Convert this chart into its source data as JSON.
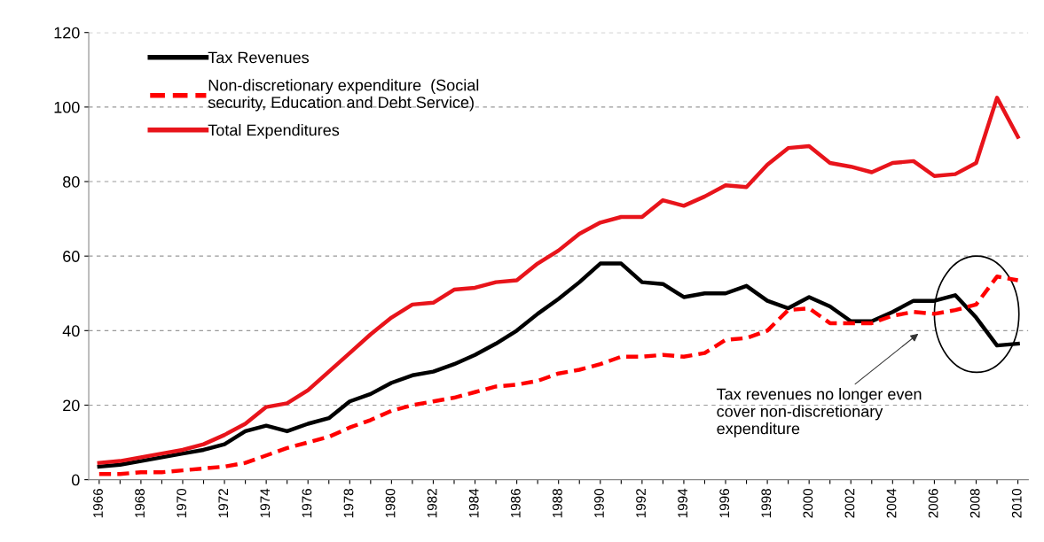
{
  "chart_data": {
    "type": "line",
    "categories": [
      "1966",
      null,
      "1968",
      null,
      "1970",
      null,
      "1972",
      null,
      "1974",
      null,
      "1976",
      null,
      "1978",
      null,
      "1980",
      null,
      "1982",
      null,
      "1984",
      null,
      "1986",
      null,
      "1988",
      null,
      "1990",
      null,
      "1992",
      null,
      "1994",
      null,
      "1996",
      null,
      "1998",
      null,
      "2000",
      null,
      "2002",
      null,
      "2004",
      null,
      "2006",
      null,
      "2008",
      null,
      "2010"
    ],
    "series": [
      {
        "name": "Tax Revenues",
        "color": "#000000",
        "line_style": "solid",
        "values": [
          3.5,
          4,
          5,
          6,
          7,
          8,
          9.5,
          13,
          14.5,
          13,
          15,
          16.5,
          21,
          23,
          26,
          28,
          29,
          31,
          33.5,
          36.5,
          40,
          44.5,
          48.5,
          53,
          58,
          58,
          53,
          52.5,
          49,
          50,
          50,
          52,
          48,
          46,
          49,
          46.5,
          42.5,
          42.5,
          45,
          48,
          48,
          49.5,
          43.5,
          36,
          36.5
        ]
      },
      {
        "name": "Non-discretionary expenditure  (Social\nsecurity, Education and Debt Service)",
        "color": "#ff0000",
        "line_style": "dashed",
        "values": [
          1.5,
          1.5,
          2,
          2,
          2.5,
          3,
          3.5,
          4.5,
          6.5,
          8.5,
          10,
          11.5,
          14,
          16,
          18.5,
          20,
          21,
          22,
          23.5,
          25,
          25.5,
          26.5,
          28.5,
          29.5,
          31,
          33,
          33,
          33.5,
          33,
          34,
          37.5,
          38,
          40,
          45.5,
          46,
          42,
          42,
          42,
          44,
          45,
          44.5,
          45.5,
          47,
          54.5,
          53.5
        ]
      },
      {
        "name": "Total Expenditures",
        "color": "#e8141b",
        "line_style": "solid",
        "values": [
          4.5,
          5,
          6,
          7,
          8,
          9.5,
          12,
          15,
          19.5,
          20.5,
          24,
          29,
          34,
          39,
          43.5,
          47,
          47.5,
          51,
          51.5,
          53,
          53.5,
          58,
          61.5,
          66,
          69,
          70.5,
          70.5,
          75,
          73.5,
          76,
          79,
          78.5,
          84.5,
          89,
          89.5,
          85,
          84,
          82.5,
          85,
          85.5,
          81.5,
          82,
          85,
          102.5,
          92
        ]
      }
    ],
    "ylim": [
      0,
      120
    ],
    "yticks": [
      0,
      20,
      40,
      60,
      80,
      100,
      120
    ],
    "grid": "y",
    "legend": "top left",
    "marker": "none",
    "annotations": [
      "Tax revenues no longer even\ncover non-discretionary\nexpenditure"
    ]
  }
}
